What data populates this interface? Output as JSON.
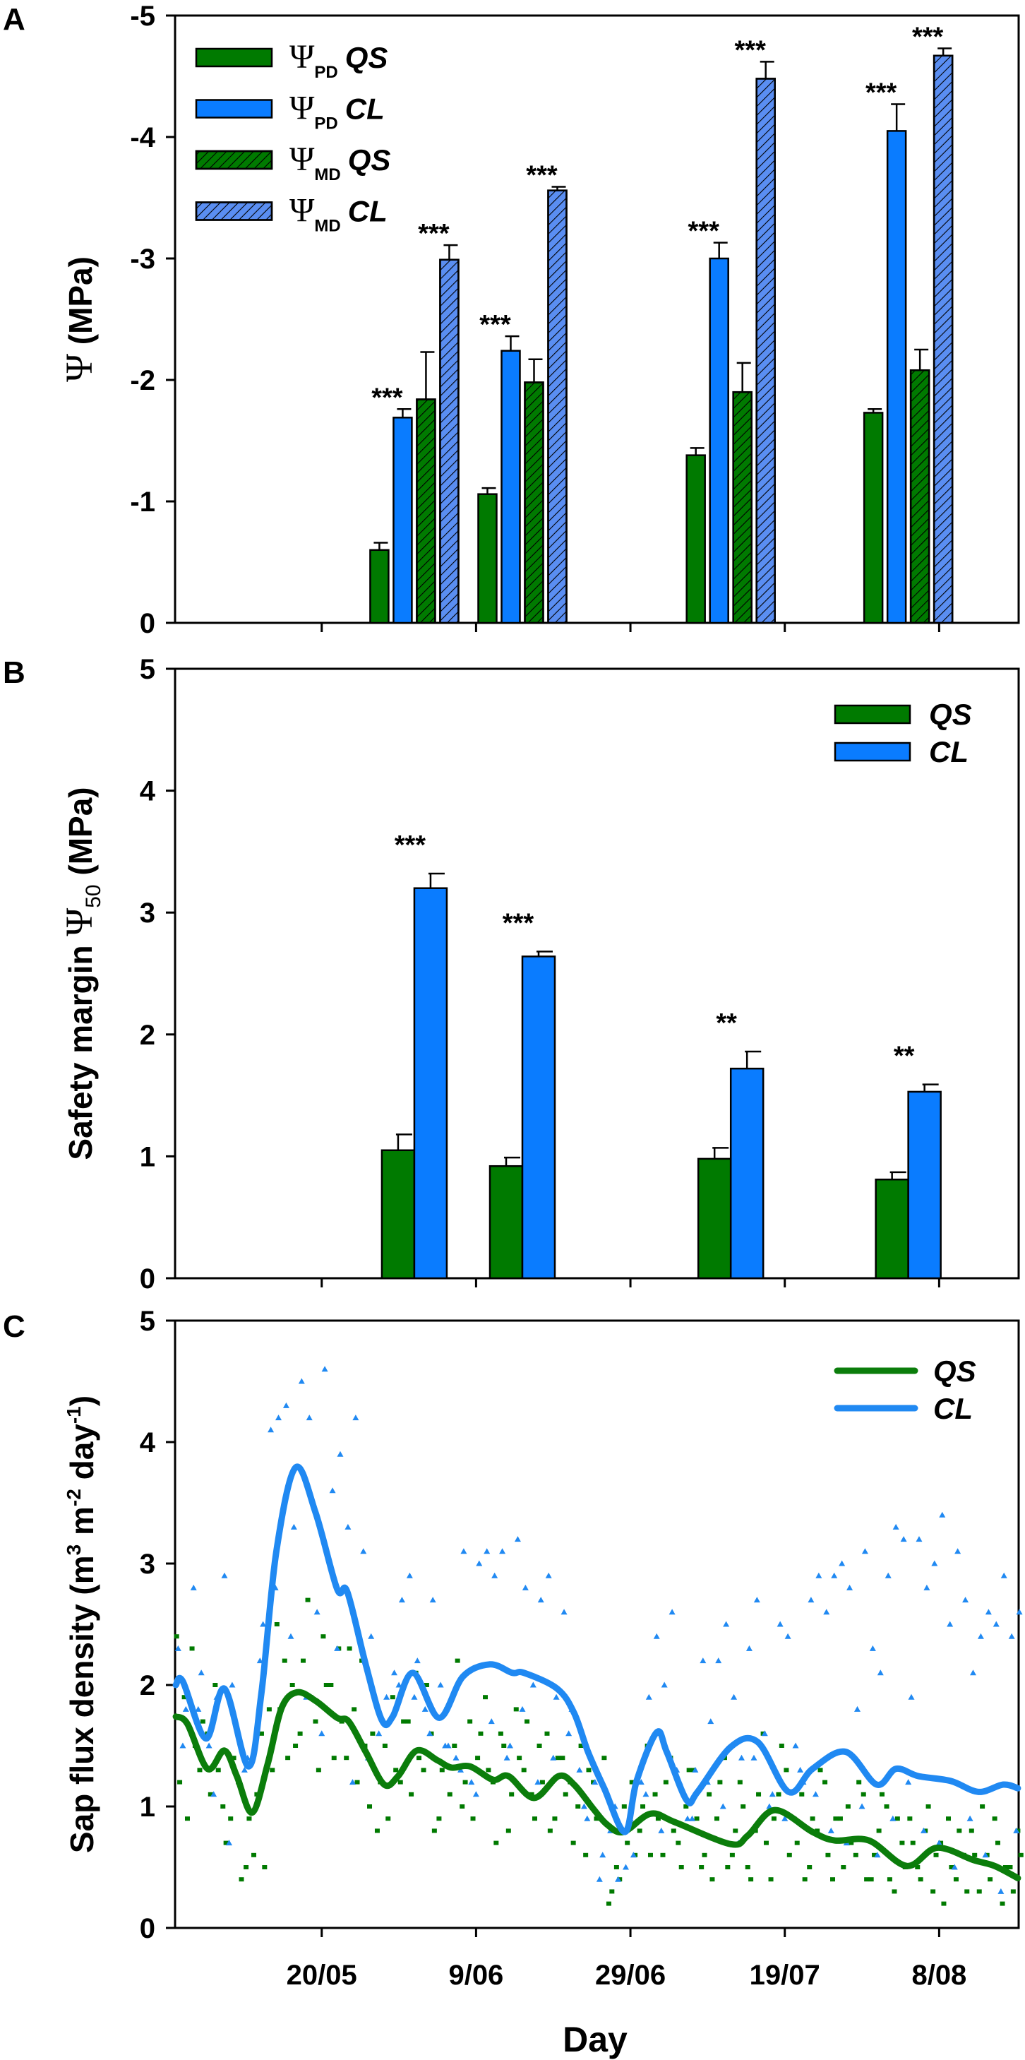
{
  "colors": {
    "qs": "#007a00",
    "cl": "#0a7cff",
    "cl_md": "#5a8ef2",
    "qs_line": "#0b7d0b",
    "cl_line": "#2089f2",
    "axis": "#000000"
  },
  "x_axis": {
    "unit": "days since 1 May",
    "xlim": [
      0,
      109.3
    ],
    "ticks": [
      {
        "day": 19,
        "label": "20/05"
      },
      {
        "day": 39,
        "label": "9/06"
      },
      {
        "day": 59,
        "label": "29/06"
      },
      {
        "day": 79,
        "label": "19/07"
      },
      {
        "day": 99,
        "label": "8/08"
      }
    ],
    "label": "Day"
  },
  "chart_data": [
    {
      "panel": "A",
      "type": "bar",
      "ylabel": {
        "symbol": "Ψ",
        "unit": " (MPa)"
      },
      "ylim": [
        0,
        -5
      ],
      "yticks": [
        0,
        -1,
        -2,
        -3,
        -4,
        -5
      ],
      "yticklabels": [
        "0",
        "-1",
        "-2",
        "-3",
        "-4",
        "-5"
      ],
      "legend_position": "top-left",
      "series": [
        {
          "key": "pd_qs",
          "symbol": "Ψ",
          "sub": "PD",
          "species": "QS",
          "hatched": false,
          "color": "qs"
        },
        {
          "key": "pd_cl",
          "symbol": "Ψ",
          "sub": "PD",
          "species": "CL",
          "hatched": false,
          "color": "cl"
        },
        {
          "key": "md_qs",
          "symbol": "Ψ",
          "sub": "MD",
          "species": "QS",
          "hatched": true,
          "color": "qs"
        },
        {
          "key": "md_cl",
          "symbol": "Ψ",
          "sub": "MD",
          "species": "CL",
          "hatched": true,
          "color": "cl_md"
        }
      ],
      "groups": [
        {
          "day": 31,
          "values": [
            -0.6,
            -1.69,
            -1.84,
            -2.99
          ],
          "errors": [
            0.06,
            0.07,
            0.39,
            0.12
          ],
          "stars": [
            null,
            "***",
            null,
            "***"
          ]
        },
        {
          "day": 45,
          "values": [
            -1.06,
            -2.24,
            -1.98,
            -3.56
          ],
          "errors": [
            0.05,
            0.12,
            0.19,
            0.03
          ],
          "stars": [
            null,
            "***",
            null,
            "***"
          ]
        },
        {
          "day": 72,
          "values": [
            -1.38,
            -3.0,
            -1.9,
            -4.48
          ],
          "errors": [
            0.06,
            0.13,
            0.24,
            0.14
          ],
          "stars": [
            null,
            "***",
            null,
            "***"
          ]
        },
        {
          "day": 95,
          "values": [
            -1.73,
            -4.05,
            -2.08,
            -4.67
          ],
          "errors": [
            0.03,
            0.22,
            0.17,
            0.06
          ],
          "stars": [
            null,
            "***",
            null,
            "***"
          ]
        }
      ]
    },
    {
      "panel": "B",
      "type": "bar",
      "ylabel": {
        "text": "Safety margin ",
        "symbol": "Ψ",
        "sub": "50",
        "unit": " (MPa)"
      },
      "ylim": [
        0,
        5
      ],
      "yticks": [
        0,
        1,
        2,
        3,
        4,
        5
      ],
      "yticklabels": [
        "0",
        "1",
        "2",
        "3",
        "4",
        "5"
      ],
      "legend_position": "top-right",
      "series": [
        {
          "key": "qs",
          "species": "QS",
          "color": "qs"
        },
        {
          "key": "cl",
          "species": "CL",
          "color": "cl"
        }
      ],
      "groups": [
        {
          "day": 31,
          "values": [
            1.05,
            3.2
          ],
          "errors": [
            0.13,
            0.12
          ],
          "stars": "***"
        },
        {
          "day": 45,
          "values": [
            0.92,
            2.64
          ],
          "errors": [
            0.07,
            0.04
          ],
          "stars": "***"
        },
        {
          "day": 72,
          "values": [
            0.98,
            1.72
          ],
          "errors": [
            0.09,
            0.14
          ],
          "stars": "**"
        },
        {
          "day": 95,
          "values": [
            0.81,
            1.53
          ],
          "errors": [
            0.06,
            0.06
          ],
          "stars": "**"
        }
      ]
    },
    {
      "panel": "C",
      "type": "line",
      "ylabel": {
        "segments": [
          {
            "t": "Sap flux density (m"
          },
          {
            "t": "3",
            "sup": true
          },
          {
            "t": " m"
          },
          {
            "t": "-2",
            "sup": true
          },
          {
            "t": " day"
          },
          {
            "t": "-1",
            "sup": true
          },
          {
            "t": ")"
          }
        ]
      },
      "xlabel": "Day",
      "ylim": [
        0,
        5
      ],
      "yticks": [
        0,
        1,
        2,
        3,
        4,
        5
      ],
      "yticklabels": [
        "0",
        "1",
        "2",
        "3",
        "4",
        "5"
      ],
      "legend_position": "top-right",
      "lines": [
        {
          "name": "QS",
          "color": "qs_line",
          "points": [
            [
              0.1,
              1.74
            ],
            [
              1.6,
              1.68
            ],
            [
              4.2,
              1.31
            ],
            [
              6.4,
              1.46
            ],
            [
              8.0,
              1.25
            ],
            [
              10.0,
              0.95
            ],
            [
              12.0,
              1.35
            ],
            [
              13.8,
              1.81
            ],
            [
              15.8,
              1.94
            ],
            [
              18.2,
              1.87
            ],
            [
              21.0,
              1.73
            ],
            [
              22.5,
              1.7
            ],
            [
              24.7,
              1.45
            ],
            [
              27.1,
              1.18
            ],
            [
              28.9,
              1.25
            ],
            [
              31.3,
              1.46
            ],
            [
              34.0,
              1.38
            ],
            [
              35.8,
              1.32
            ],
            [
              38.2,
              1.33
            ],
            [
              41.2,
              1.22
            ],
            [
              43.2,
              1.25
            ],
            [
              46.5,
              1.07
            ],
            [
              49.7,
              1.25
            ],
            [
              51.7,
              1.18
            ],
            [
              54.2,
              0.98
            ],
            [
              56.0,
              0.85
            ],
            [
              58.1,
              0.79
            ],
            [
              61.6,
              0.94
            ],
            [
              64.8,
              0.87
            ],
            [
              72.0,
              0.69
            ],
            [
              74.2,
              0.76
            ],
            [
              77.7,
              0.97
            ],
            [
              82.6,
              0.79
            ],
            [
              85.5,
              0.72
            ],
            [
              89.9,
              0.72
            ],
            [
              94.8,
              0.51
            ],
            [
              98.7,
              0.66
            ],
            [
              103.4,
              0.56
            ],
            [
              106.2,
              0.51
            ],
            [
              109.2,
              0.41
            ]
          ]
        },
        {
          "name": "CL",
          "color": "cl_line",
          "points": [
            [
              0.1,
              2.0
            ],
            [
              1.0,
              2.03
            ],
            [
              4.0,
              1.56
            ],
            [
              6.4,
              1.97
            ],
            [
              9.5,
              1.33
            ],
            [
              11.2,
              1.94
            ],
            [
              13.1,
              3.09
            ],
            [
              15.6,
              3.79
            ],
            [
              18.2,
              3.42
            ],
            [
              21.0,
              2.79
            ],
            [
              22.3,
              2.77
            ],
            [
              24.7,
              2.17
            ],
            [
              26.8,
              1.71
            ],
            [
              28.2,
              1.74
            ],
            [
              30.8,
              2.1
            ],
            [
              34.2,
              1.73
            ],
            [
              37.3,
              2.07
            ],
            [
              40.8,
              2.17
            ],
            [
              43.7,
              2.1
            ],
            [
              45.2,
              2.1
            ],
            [
              49.5,
              1.97
            ],
            [
              51.7,
              1.77
            ],
            [
              53.5,
              1.45
            ],
            [
              55.6,
              1.15
            ],
            [
              58.3,
              0.79
            ],
            [
              59.8,
              1.21
            ],
            [
              62.4,
              1.61
            ],
            [
              63.7,
              1.45
            ],
            [
              66.3,
              1.05
            ],
            [
              67.7,
              1.12
            ],
            [
              72.0,
              1.49
            ],
            [
              75.5,
              1.53
            ],
            [
              79.5,
              1.12
            ],
            [
              82.6,
              1.31
            ],
            [
              86.9,
              1.45
            ],
            [
              90.9,
              1.18
            ],
            [
              93.4,
              1.31
            ],
            [
              96.3,
              1.25
            ],
            [
              100.5,
              1.21
            ],
            [
              104.1,
              1.12
            ],
            [
              107.3,
              1.18
            ],
            [
              109.2,
              1.15
            ]
          ]
        }
      ],
      "scatter": {
        "QS_a": [
          2.4,
          1.9,
          2.3,
          1.3,
          1.6,
          2.0,
          1.0,
          0.9,
          1.2,
          0.5,
          0.6,
          1.6,
          1.8,
          2.5,
          2.2,
          2.0,
          1.6,
          2.7,
          1.7,
          2.4,
          2.0,
          2.3,
          1.4,
          1.8,
          2.2,
          1.0,
          0.8,
          1.5,
          1.9,
          1.2,
          1.7,
          2.1,
          1.3,
          1.6,
          0.9,
          1.8,
          1.5,
          1.0,
          1.7,
          1.4,
          1.9,
          1.2,
          1.6,
          0.8,
          1.8,
          1.3,
          1.1,
          1.5,
          1.6,
          0.9,
          1.4,
          1.2,
          1.0,
          0.6,
          1.2,
          0.9,
          0.2,
          0.5,
          1.0,
          1.2,
          0.8,
          1.5,
          1.1,
          0.6,
          1.4,
          0.7,
          1.0,
          1.3,
          0.5,
          1.1,
          0.9,
          1.4,
          0.6,
          1.2,
          0.5,
          0.8,
          1.6,
          0.4,
          1.1,
          1.3,
          0.9,
          1.1,
          0.5,
          0.8,
          1.2,
          0.4,
          0.9,
          1.0,
          0.6,
          1.1,
          0.4,
          0.8,
          1.0,
          0.3,
          0.7,
          0.9,
          0.5,
          0.8,
          0.3,
          0.7,
          0.9,
          0.4,
          0.6,
          0.8,
          0.3,
          0.6,
          0.9,
          0.2,
          0.5,
          0.8
        ],
        "QS_b": [
          1.2,
          0.9,
          1.5,
          1.7,
          1.1,
          1.3,
          0.7,
          1.4,
          0.4,
          0.9,
          1.1,
          0.5,
          1.3,
          1.8,
          1.4,
          1.5,
          2.2,
          1.9,
          1.3,
          2.0,
          1.4,
          1.7,
          2.3,
          1.2,
          1.5,
          1.6,
          1.2,
          0.9,
          1.3,
          1.7,
          1.1,
          1.4,
          2.0,
          0.8,
          1.3,
          1.1,
          2.2,
          1.2,
          0.9,
          1.6,
          1.3,
          0.7,
          1.5,
          1.1,
          1.4,
          1.7,
          0.9,
          1.2,
          0.8,
          1.4,
          1.1,
          0.7,
          1.5,
          1.3,
          0.9,
          1.4,
          0.3,
          0.4,
          0.7,
          0.6,
          1.0,
          0.6,
          0.9,
          1.2,
          0.8,
          0.5,
          1.3,
          0.9,
          0.6,
          0.4,
          1.2,
          0.5,
          0.8,
          1.0,
          0.4,
          1.1,
          0.7,
          0.9,
          1.5,
          0.6,
          0.7,
          0.4,
          0.9,
          1.3,
          0.6,
          0.9,
          0.5,
          0.7,
          1.2,
          0.4,
          0.6,
          1.1,
          0.4,
          0.9,
          0.5,
          0.7,
          0.4,
          1.0,
          0.6,
          0.2,
          0.5,
          0.8,
          0.3,
          0.6,
          1.0,
          0.4,
          0.7,
          0.5,
          0.3,
          0.6
        ],
        "CL_a": [
          2.3,
          1.8,
          2.8,
          2.1,
          1.5,
          1.9,
          2.9,
          2.0,
          1.2,
          1.4,
          1.0,
          2.5,
          4.1,
          4.2,
          4.3,
          3.3,
          4.5,
          4.2,
          2.6,
          4.6,
          3.6,
          3.9,
          3.3,
          4.2,
          3.1,
          2.4,
          1.6,
          1.9,
          2.1,
          2.7,
          2.9,
          2.2,
          1.8,
          2.7,
          2.0,
          1.5,
          1.4,
          3.1,
          1.2,
          3.0,
          3.1,
          2.9,
          3.1,
          1.5,
          3.2,
          2.8,
          2.0,
          2.7,
          2.9,
          1.9,
          2.6,
          1.8,
          1.3,
          0.9,
          1.2,
          0.6,
          0.8,
          0.4,
          0.5,
          0.6,
          1.2,
          1.9,
          2.4,
          2.0,
          2.6,
          1.2,
          0.9,
          1.3,
          2.2,
          1.7,
          2.2,
          2.5,
          1.9,
          1.4,
          2.3,
          2.7,
          1.6,
          1.1,
          2.5,
          2.4,
          1.5,
          1.2,
          2.7,
          2.9,
          2.6,
          2.9,
          3.0,
          2.8,
          1.8,
          3.1,
          2.3,
          2.1,
          2.9,
          3.3,
          3.2,
          1.9,
          3.2,
          2.8,
          3.0,
          3.4,
          2.5,
          3.1,
          2.7,
          2.1,
          2.4,
          2.6,
          2.5,
          2.9,
          2.4,
          2.6
        ],
        "CL_b_every_2nd_day_from_1": [
          1.5,
          1.8,
          1.1,
          0.7,
          1.3,
          2.2,
          2.8,
          2.4,
          1.9,
          1.6,
          2.3,
          1.2,
          1.4,
          1.7,
          2.0,
          1.9,
          1.6,
          1.5,
          1.3,
          1.1,
          1.7,
          1.4,
          1.8,
          1.2,
          1.4,
          1.6,
          1.0,
          0.4,
          1.0,
          0.9,
          1.1,
          0.8,
          1.3,
          0.9,
          1.2,
          1.0,
          0.7,
          1.4,
          1.0,
          0.9,
          1.3,
          1.1,
          0.8,
          0.7,
          1.0,
          0.6,
          0.9,
          1.2,
          0.8,
          0.7,
          0.5,
          0.9,
          0.6,
          0.3,
          0.8
        ]
      }
    }
  ]
}
